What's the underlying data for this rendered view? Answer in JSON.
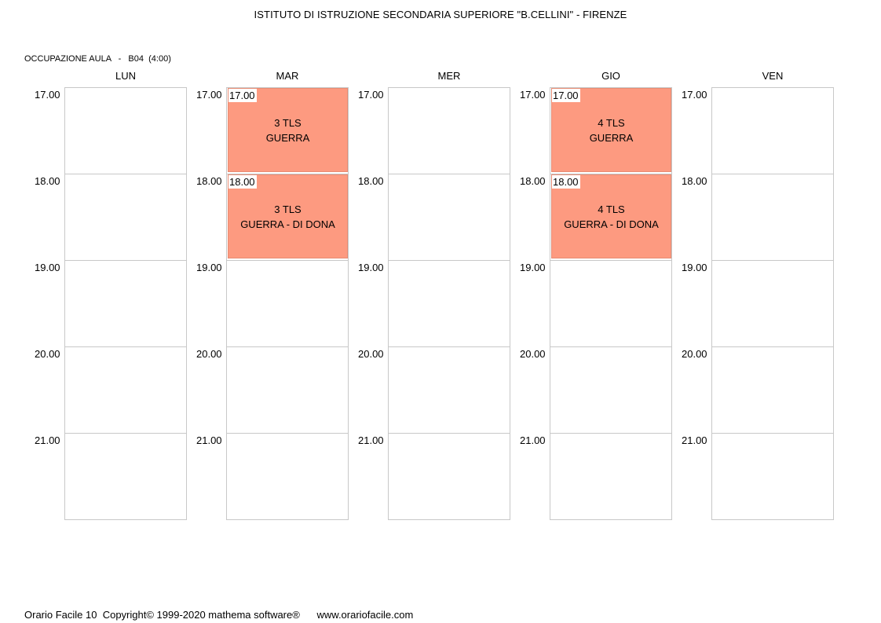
{
  "header": {
    "title": "ISTITUTO DI ISTRUZIONE SECONDARIA SUPERIORE \"B.CELLINI\" - FIRENZE",
    "subtitle": "OCCUPAZIONE AULA   -   B04  (4:00)"
  },
  "days": [
    {
      "name": "LUN"
    },
    {
      "name": "MAR"
    },
    {
      "name": "MER"
    },
    {
      "name": "GIO"
    },
    {
      "name": "VEN"
    }
  ],
  "hours": [
    "17.00",
    "18.00",
    "19.00",
    "20.00",
    "21.00"
  ],
  "lessons": {
    "mar_17": {
      "time": "17.00",
      "class": "3 TLS",
      "teacher": "GUERRA"
    },
    "mar_18": {
      "time": "18.00",
      "class": "3 TLS",
      "teacher": "GUERRA - DI DONA"
    },
    "gio_17": {
      "time": "17.00",
      "class": "4 TLS",
      "teacher": "GUERRA"
    },
    "gio_18": {
      "time": "18.00",
      "class": "4 TLS",
      "teacher": "GUERRA - DI DONA"
    }
  },
  "colors": {
    "lesson_fill": "#fd9a80",
    "cell_border": "#c8c8c8"
  },
  "footer": {
    "copyright": "Orario Facile 10  Copyright© 1999-2020 mathema software®",
    "website": "www.orariofacile.com"
  }
}
